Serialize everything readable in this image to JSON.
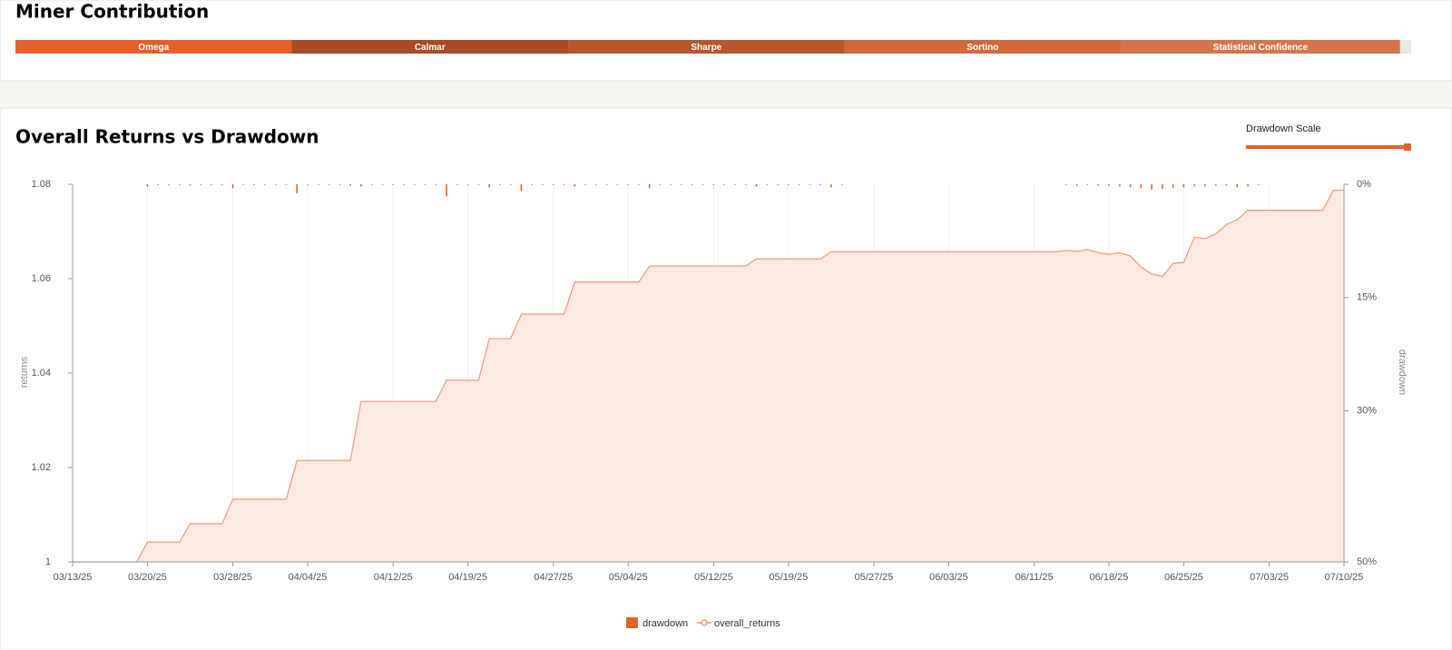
{
  "chart_data": [
    {
      "type": "stacked-bar",
      "title": "Miner Contribution",
      "xlim": [
        0,
        100
      ],
      "segments": [
        {
          "name": "Omega",
          "value": 19.8,
          "color": "#e4622a"
        },
        {
          "name": "Calmar",
          "value": 19.8,
          "color": "#a74c25"
        },
        {
          "name": "Sharpe",
          "value": 19.8,
          "color": "#b7572d"
        },
        {
          "name": "Sortino",
          "value": 19.8,
          "color": "#d1693a"
        },
        {
          "name": "Statistical Confidence",
          "value": 20.0,
          "color": "#d6744b"
        }
      ]
    },
    {
      "type": "combo",
      "title": "Overall Returns vs Drawdown",
      "slider_label": "Drawdown Scale",
      "y_label": "returns",
      "y2_label": "drawdown",
      "ylim": [
        1,
        1.08
      ],
      "yticks": [
        1,
        1.02,
        1.04,
        1.06,
        1.08
      ],
      "y2lim": [
        0,
        50
      ],
      "y2_inverted": true,
      "y2ticks": [
        {
          "value": 0,
          "label": "0%"
        },
        {
          "value": 15,
          "label": "15%"
        },
        {
          "value": 30,
          "label": "30%"
        },
        {
          "value": 50,
          "label": "50%"
        }
      ],
      "xticks": [
        "03/13/25",
        "03/20/25",
        "03/28/25",
        "04/04/25",
        "04/12/25",
        "04/19/25",
        "04/27/25",
        "05/04/25",
        "05/12/25",
        "05/19/25",
        "05/27/25",
        "06/03/25",
        "06/11/25",
        "06/18/25",
        "06/25/25",
        "07/03/25",
        "07/10/25"
      ],
      "x": [
        "03/13/25",
        "03/14/25",
        "03/15/25",
        "03/16/25",
        "03/17/25",
        "03/18/25",
        "03/19/25",
        "03/20/25",
        "03/21/25",
        "03/22/25",
        "03/23/25",
        "03/24/25",
        "03/25/25",
        "03/26/25",
        "03/27/25",
        "03/28/25",
        "03/29/25",
        "03/30/25",
        "03/31/25",
        "04/01/25",
        "04/02/25",
        "04/03/25",
        "04/04/25",
        "04/05/25",
        "04/06/25",
        "04/07/25",
        "04/08/25",
        "04/09/25",
        "04/10/25",
        "04/11/25",
        "04/12/25",
        "04/13/25",
        "04/14/25",
        "04/15/25",
        "04/16/25",
        "04/17/25",
        "04/18/25",
        "04/19/25",
        "04/20/25",
        "04/21/25",
        "04/22/25",
        "04/23/25",
        "04/24/25",
        "04/25/25",
        "04/26/25",
        "04/27/25",
        "04/28/25",
        "04/29/25",
        "04/30/25",
        "05/01/25",
        "05/02/25",
        "05/03/25",
        "05/04/25",
        "05/05/25",
        "05/06/25",
        "05/07/25",
        "05/08/25",
        "05/09/25",
        "05/10/25",
        "05/11/25",
        "05/12/25",
        "05/13/25",
        "05/14/25",
        "05/15/25",
        "05/16/25",
        "05/17/25",
        "05/18/25",
        "05/19/25",
        "05/20/25",
        "05/21/25",
        "05/22/25",
        "05/23/25",
        "05/24/25",
        "05/25/25",
        "05/26/25",
        "05/27/25",
        "05/28/25",
        "05/29/25",
        "05/30/25",
        "05/31/25",
        "06/01/25",
        "06/02/25",
        "06/03/25",
        "06/04/25",
        "06/05/25",
        "06/06/25",
        "06/07/25",
        "06/08/25",
        "06/09/25",
        "06/10/25",
        "06/11/25",
        "06/12/25",
        "06/13/25",
        "06/14/25",
        "06/15/25",
        "06/16/25",
        "06/17/25",
        "06/18/25",
        "06/19/25",
        "06/20/25",
        "06/21/25",
        "06/22/25",
        "06/23/25",
        "06/24/25",
        "06/25/25",
        "06/26/25",
        "06/27/25",
        "06/28/25",
        "06/29/25",
        "06/30/25",
        "07/01/25",
        "07/02/25",
        "07/03/25",
        "07/04/25",
        "07/05/25",
        "07/06/25",
        "07/07/25",
        "07/08/25",
        "07/09/25",
        "07/10/25"
      ],
      "series": [
        {
          "name": "drawdown",
          "type": "bar",
          "axis": "y2",
          "color": "#e4622a",
          "values": [
            0,
            0,
            0,
            0,
            0,
            0,
            0,
            0.3,
            0.1,
            0.1,
            0.1,
            0.2,
            0.1,
            0.1,
            0.1,
            0.5,
            0.1,
            0.1,
            0.1,
            0.1,
            0.1,
            1.2,
            0.1,
            0.1,
            0.1,
            0.1,
            0.2,
            0.3,
            0.1,
            0.1,
            0.1,
            0.1,
            0.1,
            0.1,
            0.1,
            1.6,
            0.1,
            0.1,
            0.1,
            0.4,
            0.1,
            0.1,
            0.9,
            0.1,
            0.1,
            0.1,
            0.1,
            0.3,
            0.1,
            0.1,
            0.1,
            0.1,
            0.1,
            0.1,
            0.5,
            0.1,
            0.1,
            0.1,
            0.1,
            0.1,
            0.1,
            0.1,
            0.1,
            0.1,
            0.3,
            0.1,
            0.1,
            0.1,
            0.1,
            0.1,
            0.1,
            0.4,
            0.1,
            0,
            0,
            0,
            0,
            0,
            0,
            0,
            0,
            0,
            0,
            0,
            0,
            0,
            0,
            0,
            0,
            0,
            0,
            0,
            0,
            0.1,
            0.2,
            0.1,
            0.2,
            0.2,
            0.3,
            0.4,
            0.5,
            0.7,
            0.6,
            0.5,
            0.4,
            0.3,
            0.3,
            0.2,
            0.2,
            0.4,
            0.3,
            0.1,
            0,
            0,
            0,
            0,
            0,
            0,
            0,
            0
          ]
        },
        {
          "name": "overall_returns",
          "type": "line",
          "color": "#ef9a7a",
          "fill": "#fce9e1",
          "values": [
            1,
            1,
            1,
            1,
            1,
            1,
            1,
            1.0042,
            1.0042,
            1.0042,
            1.0042,
            1.0081,
            1.0081,
            1.0081,
            1.0081,
            1.0133,
            1.0133,
            1.0133,
            1.0133,
            1.0133,
            1.0133,
            1.0215,
            1.0215,
            1.0215,
            1.0215,
            1.0215,
            1.0215,
            1.034,
            1.034,
            1.034,
            1.034,
            1.034,
            1.034,
            1.034,
            1.034,
            1.0385,
            1.0385,
            1.0385,
            1.0385,
            1.0473,
            1.0473,
            1.0473,
            1.0525,
            1.0525,
            1.0525,
            1.0525,
            1.0525,
            1.0593,
            1.0593,
            1.0593,
            1.0593,
            1.0593,
            1.0593,
            1.0593,
            1.0627,
            1.0627,
            1.0627,
            1.0627,
            1.0627,
            1.0627,
            1.0627,
            1.0627,
            1.0627,
            1.0627,
            1.0642,
            1.0642,
            1.0642,
            1.0642,
            1.0642,
            1.0642,
            1.0642,
            1.0657,
            1.0657,
            1.0657,
            1.0657,
            1.0657,
            1.0657,
            1.0657,
            1.0657,
            1.0657,
            1.0657,
            1.0657,
            1.0657,
            1.0657,
            1.0657,
            1.0657,
            1.0657,
            1.0657,
            1.0657,
            1.0657,
            1.0657,
            1.0657,
            1.0657,
            1.066,
            1.0658,
            1.0662,
            1.0655,
            1.0652,
            1.0655,
            1.0648,
            1.0625,
            1.061,
            1.0605,
            1.0632,
            1.0635,
            1.0688,
            1.0685,
            1.0695,
            1.0715,
            1.0725,
            1.0745,
            1.0745,
            1.0745,
            1.0745,
            1.0745,
            1.0745,
            1.0745,
            1.0745,
            1.0787,
            1.0788
          ]
        }
      ]
    }
  ]
}
